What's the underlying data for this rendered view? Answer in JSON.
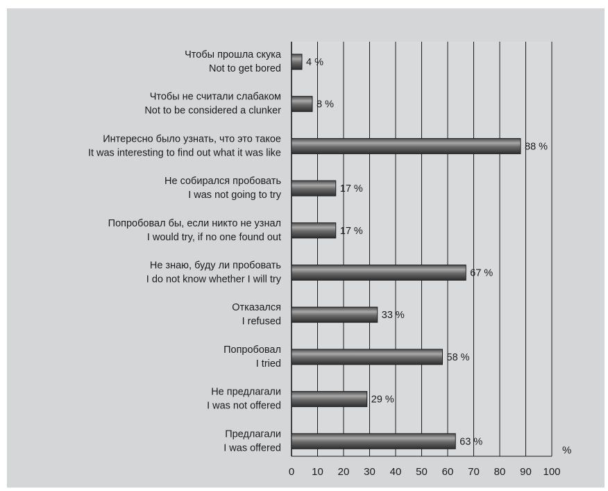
{
  "chart_data": {
    "type": "bar",
    "orientation": "horizontal",
    "categories": [
      [
        "Чтобы прошла скука",
        "Not to get bored"
      ],
      [
        "Чтобы не считали слабаком",
        "Not to be considered a clunker"
      ],
      [
        "Интересно было узнать, что это такое",
        "It was interesting to find out what it was like"
      ],
      [
        "Не собирался пробовать",
        "I was not going to try"
      ],
      [
        "Попробовал бы, если никто не узнал",
        "I would try, if no one found out"
      ],
      [
        "Не знаю, буду ли пробовать",
        "I do not know whether I will try"
      ],
      [
        "Отказался",
        "I refused"
      ],
      [
        "Попробовал",
        "I tried"
      ],
      [
        "Не предлагали",
        "I was not offered"
      ],
      [
        "Предлагали",
        "I was offered"
      ]
    ],
    "values": [
      4,
      8,
      88,
      17,
      17,
      67,
      33,
      58,
      29,
      63
    ],
    "value_labels": [
      "4 %",
      "8 %",
      "88 %",
      "17 %",
      "17 %",
      "67 %",
      "33 %",
      "58 %",
      "29 %",
      "63 %"
    ],
    "xticks": [
      "0",
      "10",
      "20",
      "30",
      "40",
      "50",
      "60",
      "70",
      "80",
      "90",
      "100"
    ],
    "xlim": [
      0,
      100
    ],
    "xunit": "%",
    "grid": "vertical",
    "colors": {
      "panel_bg": "#d5d6d8",
      "plot_bg": "#d9dadc",
      "grid_line": "#1a1a1a",
      "bar_dark": "#3a3a3a",
      "bar_light": "#a8a8a8"
    }
  }
}
